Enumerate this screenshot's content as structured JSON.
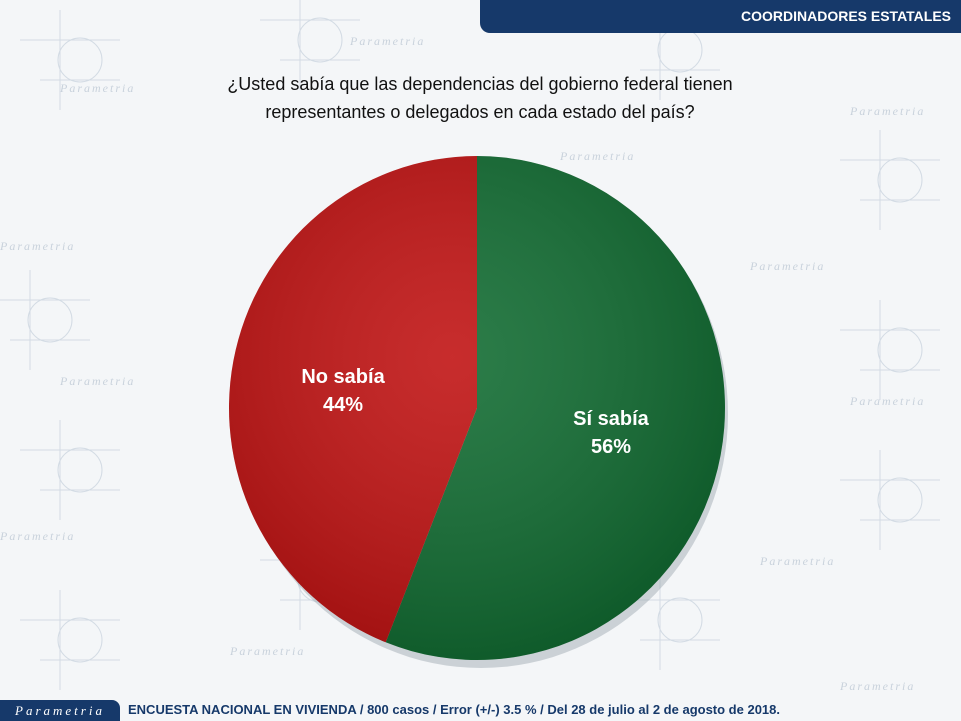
{
  "header": {
    "title": "COORDINADORES ESTATALES"
  },
  "background": {
    "brand_watermark": "Parametria"
  },
  "question": {
    "line1": "¿Usted sabía que las dependencias del gobierno federal tienen",
    "line2": "representantes o delegados en cada estado del país?"
  },
  "chart_data": {
    "type": "pie",
    "title": "",
    "slices": [
      {
        "label": "Sí sabía",
        "value": 56,
        "value_label": "56%",
        "color": "#0f6b30"
      },
      {
        "label": "No sabía",
        "value": 44,
        "value_label": "44%",
        "color": "#c01010"
      }
    ],
    "start_at": "top",
    "direction": "clockwise",
    "legend": "none"
  },
  "footer": {
    "brand": "Parametria",
    "note": "ENCUESTA NACIONAL EN VIVIENDA / 800 casos / Error (+/-) 3.5 % / Del 28 de julio al 2 de agosto de 2018."
  },
  "colors": {
    "brand_blue": "#16396a"
  }
}
